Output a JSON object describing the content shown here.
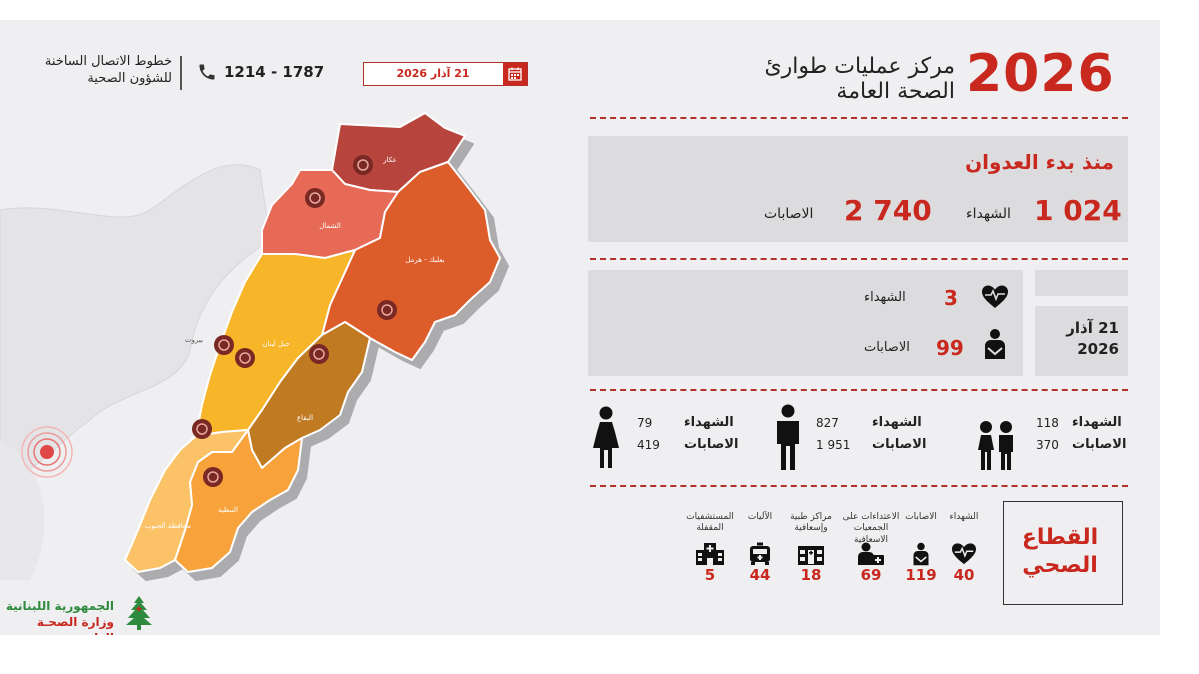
{
  "header": {
    "year": "2026",
    "title_line1": "مركز عمليات طوارئ",
    "title_line2": "الصحة العامة",
    "date_chip": "21 آذار 2026",
    "hotline_number": "1214 - 1787",
    "hotline_label_line1": "خطوط الاتصال الساخنة",
    "hotline_label_line2": "للشؤون الصحية"
  },
  "since_start": {
    "title": "منذ بدء العدوان",
    "killed_value": "1 024",
    "killed_label": "الشهداء",
    "injured_value": "2 740",
    "injured_label": "الاصابات"
  },
  "daily": {
    "date_line1": "21 آذار",
    "date_line2": "2026",
    "killed_value": "3",
    "killed_label": "الشهداء",
    "injured_value": "99",
    "injured_label": "الاصابات"
  },
  "demographics": {
    "children": {
      "killed_label": "الشهداء",
      "killed_value": "118",
      "injured_label": "الاصابات",
      "injured_value": "370"
    },
    "men": {
      "killed_label": "الشهداء",
      "killed_value": "827",
      "injured_label": "الاصابات",
      "injured_value": "1 951"
    },
    "women": {
      "killed_label": "الشهداء",
      "killed_value": "79",
      "injured_label": "الاصابات",
      "injured_value": "419"
    }
  },
  "health_sector": {
    "title_line1": "القطاع",
    "title_line2": "الصحي",
    "items": [
      {
        "label": "الشهداء",
        "value": "40",
        "icon": "heart-pulse-icon"
      },
      {
        "label": "الاصابات",
        "value": "119",
        "icon": "injured-person-icon"
      },
      {
        "label": "الاعتداءات على الجمعيات الاسعافية",
        "value": "69",
        "icon": "paramedic-icon"
      },
      {
        "label": "مراكز طبية وإسعافية",
        "value": "18",
        "icon": "medical-center-icon"
      },
      {
        "label": "الآليات",
        "value": "44",
        "icon": "ambulance-icon"
      },
      {
        "label": "المستشفيات المقفلة",
        "value": "5",
        "icon": "hospital-icon"
      }
    ]
  },
  "map": {
    "regions": {
      "akkar": "عكار",
      "north": "الشمال",
      "baalbek": "بعلبك - هرمل",
      "mount": "جبل لبنان",
      "beirut": "بيروت",
      "bekaa": "البقاع",
      "nabatieh": "النبطية",
      "south": "محافظة الجنوب"
    },
    "colors": {
      "akkar": "#b8453c",
      "north": "#e66a55",
      "baalbek": "#dc5b2a",
      "mount": "#f7b52c",
      "bekaa": "#bf7a22",
      "nabatieh": "#f7a23a",
      "south": "#fbc268"
    }
  },
  "footer": {
    "republic": "الجمهورية اللبنانية",
    "ministry": "وزارة الصحـة العامـة"
  }
}
